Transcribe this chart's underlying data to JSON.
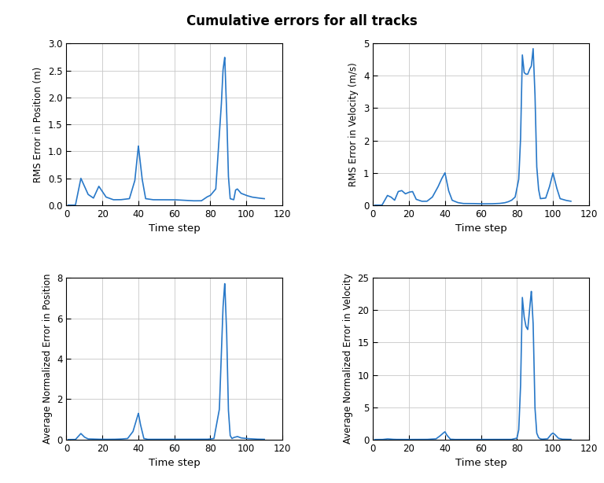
{
  "title": "Cumulative errors for all tracks",
  "title_fontsize": 12,
  "title_fontweight": "bold",
  "line_color": "#2878C8",
  "line_width": 1.2,
  "axes": [
    {
      "xlabel": "Time step",
      "ylabel": "RMS Error in Position (m)",
      "xlim": [
        0,
        120
      ],
      "ylim": [
        0,
        3
      ],
      "yticks": [
        0,
        0.5,
        1.0,
        1.5,
        2.0,
        2.5,
        3.0
      ],
      "xticks": [
        0,
        20,
        40,
        60,
        80,
        100,
        120
      ]
    },
    {
      "xlabel": "Time step",
      "ylabel": "RMS Error in Velocity (m/s)",
      "xlim": [
        0,
        120
      ],
      "ylim": [
        0,
        5
      ],
      "yticks": [
        0,
        1,
        2,
        3,
        4,
        5
      ],
      "xticks": [
        0,
        20,
        40,
        60,
        80,
        100,
        120
      ]
    },
    {
      "xlabel": "Time step",
      "ylabel": "Average Normalized Error in Position",
      "xlim": [
        0,
        120
      ],
      "ylim": [
        0,
        8
      ],
      "yticks": [
        0,
        2,
        4,
        6,
        8
      ],
      "xticks": [
        0,
        20,
        40,
        60,
        80,
        100,
        120
      ]
    },
    {
      "xlabel": "Time step",
      "ylabel": "Average Normalized Error in Velocity",
      "xlim": [
        0,
        120
      ],
      "ylim": [
        0,
        25
      ],
      "yticks": [
        0,
        5,
        10,
        15,
        20,
        25
      ],
      "xticks": [
        0,
        20,
        40,
        60,
        80,
        100,
        120
      ]
    }
  ]
}
